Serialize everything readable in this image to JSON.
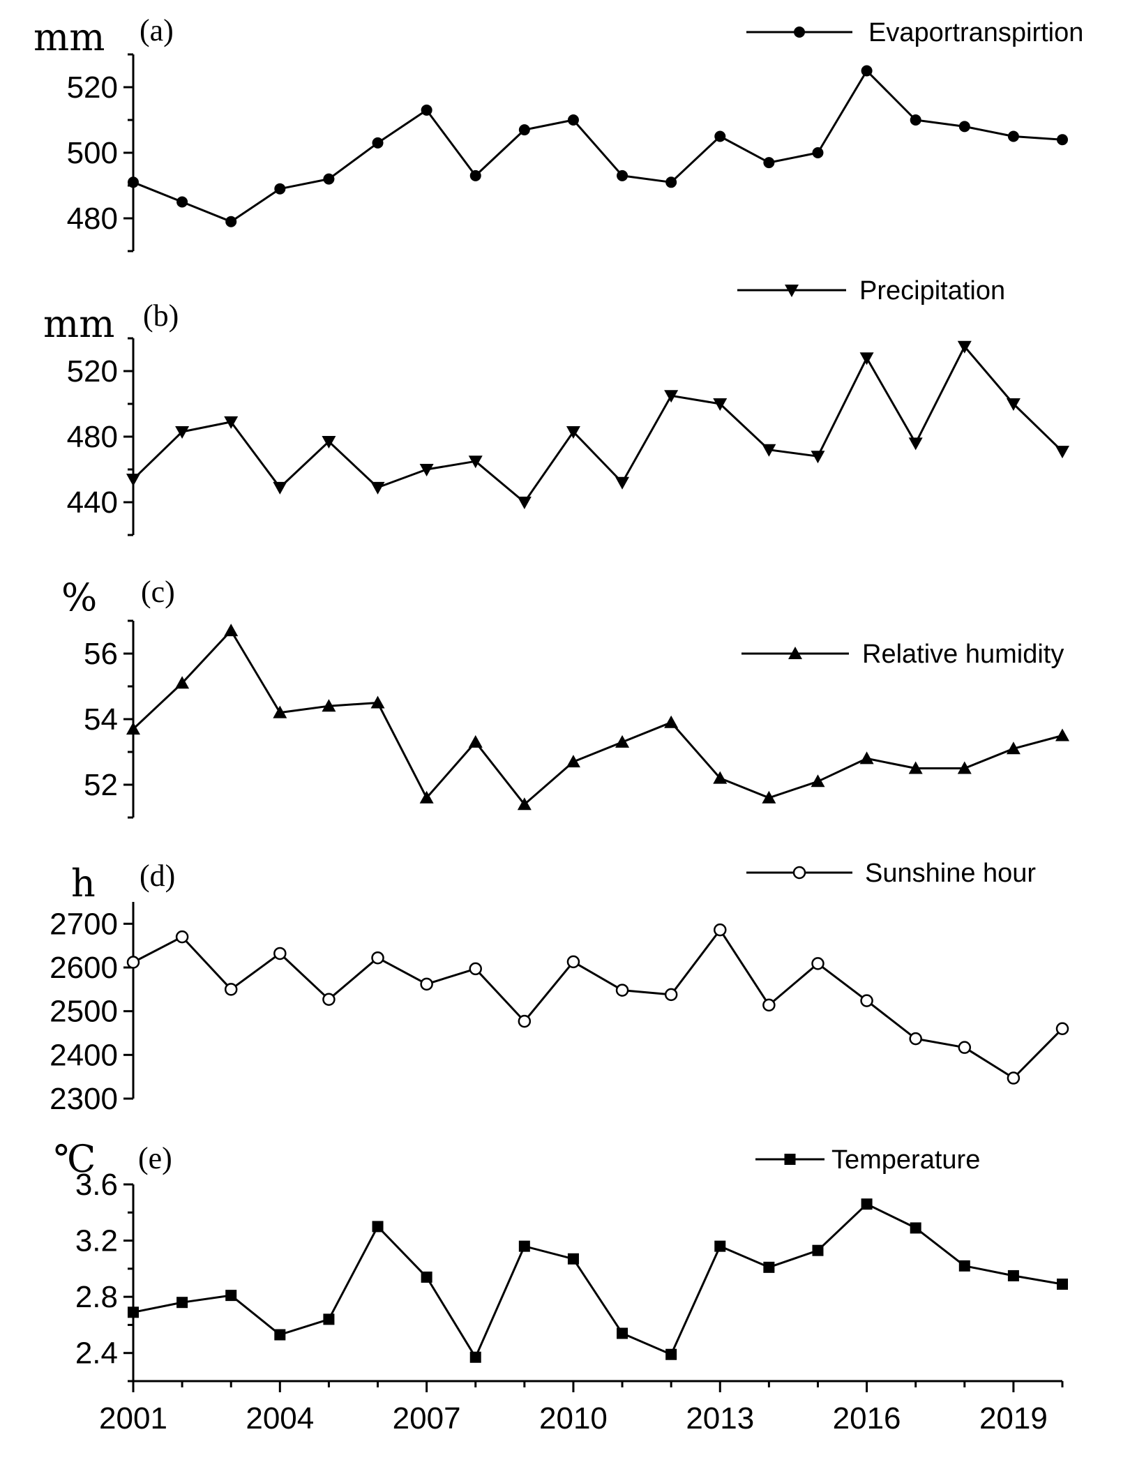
{
  "chart_data": [
    {
      "type": "line",
      "panel": "(a)",
      "unit": "mm",
      "legend": "Evaportranspirtion",
      "marker": "circle",
      "x": [
        2001,
        2002,
        2003,
        2004,
        2005,
        2006,
        2007,
        2008,
        2009,
        2010,
        2011,
        2012,
        2013,
        2014,
        2015,
        2016,
        2017,
        2018,
        2019,
        2020
      ],
      "values": [
        491,
        485,
        479,
        489,
        492,
        503,
        513,
        493,
        507,
        510,
        493,
        491,
        505,
        497,
        500,
        525,
        510,
        508,
        505,
        504
      ],
      "ylim": [
        470,
        530
      ],
      "yticks": [
        480,
        500,
        520
      ],
      "yticks_minor": [
        470,
        490,
        510,
        530
      ]
    },
    {
      "type": "line",
      "panel": "(b)",
      "unit": "mm",
      "legend": "Precipitation",
      "marker": "triangle-down",
      "x": [
        2001,
        2002,
        2003,
        2004,
        2005,
        2006,
        2007,
        2008,
        2009,
        2010,
        2011,
        2012,
        2013,
        2014,
        2015,
        2016,
        2017,
        2018,
        2019,
        2020
      ],
      "values": [
        454,
        483,
        489,
        449,
        477,
        449,
        460,
        465,
        440,
        483,
        452,
        505,
        500,
        472,
        468,
        528,
        476,
        535,
        500,
        471
      ],
      "ylim": [
        420,
        540
      ],
      "yticks": [
        440,
        480,
        520
      ],
      "yticks_minor": [
        420,
        460,
        500,
        540
      ]
    },
    {
      "type": "line",
      "panel": "(c)",
      "unit": "%",
      "legend": "Relative humidity",
      "marker": "triangle-up",
      "x": [
        2001,
        2002,
        2003,
        2004,
        2005,
        2006,
        2007,
        2008,
        2009,
        2010,
        2011,
        2012,
        2013,
        2014,
        2015,
        2016,
        2017,
        2018,
        2019,
        2020
      ],
      "values": [
        53.7,
        55.1,
        56.7,
        54.2,
        54.4,
        54.5,
        51.6,
        53.3,
        51.4,
        52.7,
        53.3,
        53.9,
        52.2,
        51.6,
        52.1,
        52.8,
        52.5,
        52.5,
        53.1,
        53.5
      ],
      "ylim": [
        51,
        57
      ],
      "yticks": [
        52,
        54,
        56
      ],
      "yticks_minor": [
        51,
        53,
        55,
        57
      ]
    },
    {
      "type": "line",
      "panel": "(d)",
      "unit": "h",
      "legend": "Sunshine hour",
      "marker": "open-circle",
      "x": [
        2001,
        2002,
        2003,
        2004,
        2005,
        2006,
        2007,
        2008,
        2009,
        2010,
        2011,
        2012,
        2013,
        2014,
        2015,
        2016,
        2017,
        2018,
        2019,
        2020
      ],
      "values": [
        2612,
        2670,
        2550,
        2632,
        2527,
        2622,
        2562,
        2597,
        2477,
        2613,
        2548,
        2538,
        2686,
        2514,
        2609,
        2524,
        2437,
        2417,
        2347,
        2460
      ],
      "ylim": [
        2300,
        2750
      ],
      "yticks": [
        2300,
        2400,
        2500,
        2600,
        2700
      ],
      "yticks_minor": []
    },
    {
      "type": "line",
      "panel": "(e)",
      "unit": "℃",
      "legend": "Temperature",
      "marker": "square",
      "x": [
        2001,
        2002,
        2003,
        2004,
        2005,
        2006,
        2007,
        2008,
        2009,
        2010,
        2011,
        2012,
        2013,
        2014,
        2015,
        2016,
        2017,
        2018,
        2019,
        2020
      ],
      "values": [
        2.69,
        2.76,
        2.81,
        2.53,
        2.64,
        3.3,
        2.94,
        2.37,
        3.16,
        3.07,
        2.54,
        2.39,
        3.16,
        3.01,
        3.13,
        3.46,
        3.29,
        3.02,
        2.95,
        2.89
      ],
      "ylim": [
        2.2,
        3.6
      ],
      "yticks": [
        2.4,
        2.8,
        3.2,
        3.6
      ],
      "yticks_minor": [
        2.2,
        2.6,
        3.0,
        3.4
      ],
      "xticks": [
        2001,
        2004,
        2007,
        2010,
        2013,
        2016,
        2019
      ],
      "xlim": [
        2001,
        2020
      ]
    }
  ]
}
